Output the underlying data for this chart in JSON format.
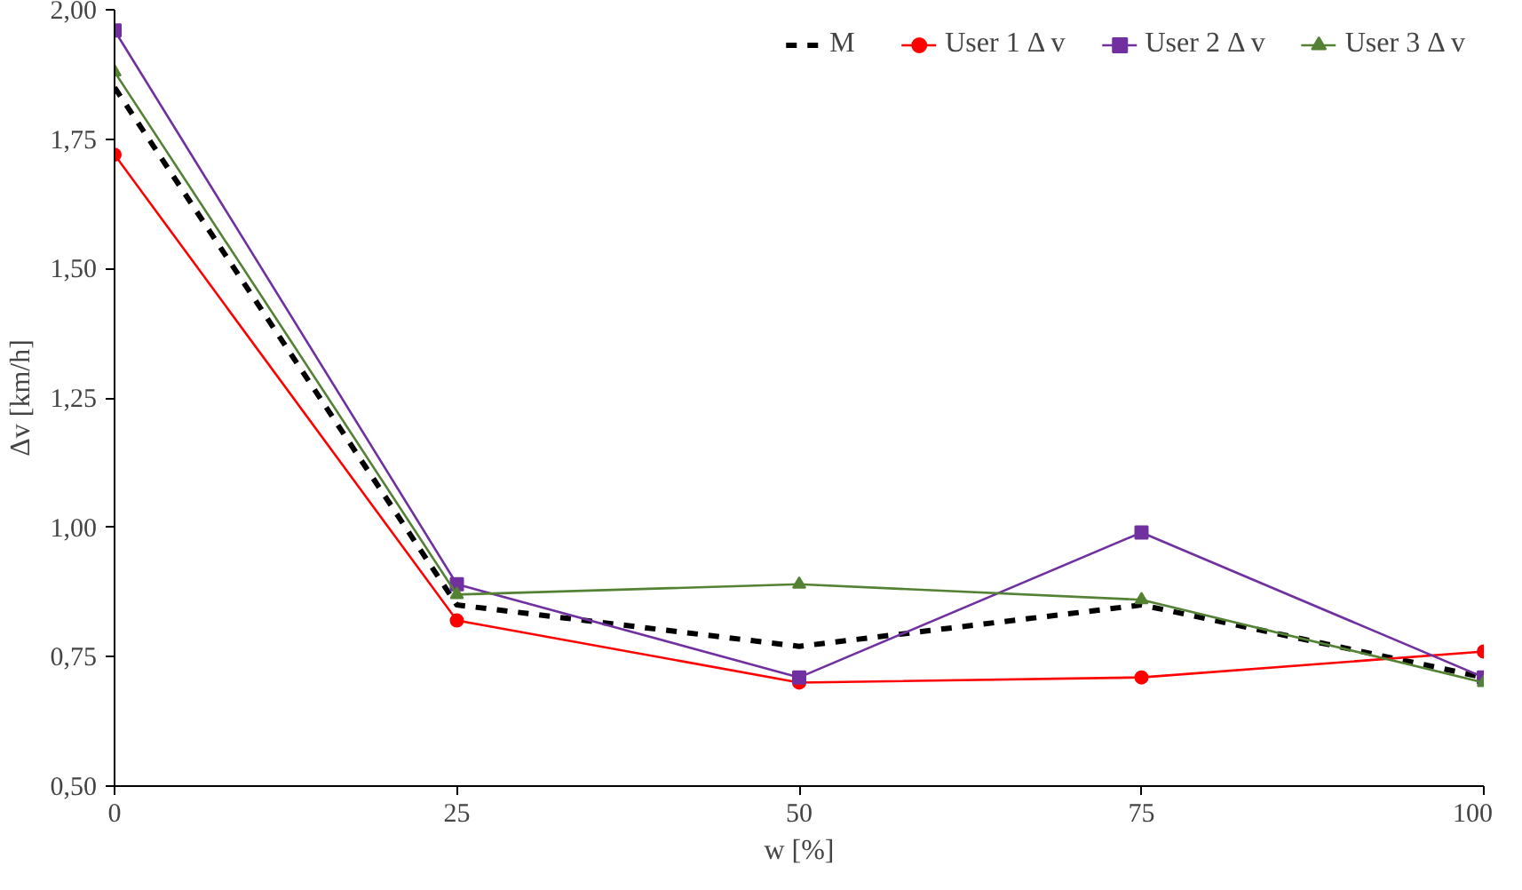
{
  "chart_data": {
    "type": "line",
    "xlabel": "w [%]",
    "ylabel": "Δv [km/h]",
    "x": [
      0,
      25,
      50,
      75,
      100
    ],
    "series": [
      {
        "name": "M",
        "color": "#000000",
        "values": [
          1.85,
          0.85,
          0.77,
          0.85,
          0.71
        ],
        "line_style": "dashed",
        "marker": "none"
      },
      {
        "name": "User 1 Δ v",
        "color": "#ff0000",
        "values": [
          1.72,
          0.82,
          0.7,
          0.71,
          0.76
        ],
        "marker": "circle"
      },
      {
        "name": "User 2 Δ v",
        "color": "#7030a0",
        "values": [
          1.96,
          0.89,
          0.71,
          0.99,
          0.71
        ],
        "marker": "square"
      },
      {
        "name": "User 3 Δ v",
        "color": "#548235",
        "values": [
          1.88,
          0.87,
          0.89,
          0.86,
          0.7
        ],
        "marker": "triangle"
      }
    ],
    "xlim": [
      0,
      100
    ],
    "xticks": [
      0,
      25,
      50,
      75,
      100
    ],
    "ylim": [
      0.5,
      2.0
    ],
    "yticks": [
      {
        "value": 0.5,
        "label": "0,50"
      },
      {
        "value": 0.75,
        "label": "0,75"
      },
      {
        "value": 1.0,
        "label": "1,00"
      },
      {
        "value": 1.25,
        "label": "1,25"
      },
      {
        "value": 1.5,
        "label": "1,50"
      },
      {
        "value": 1.75,
        "label": "1,75"
      },
      {
        "value": 2.0,
        "label": "2,00"
      }
    ],
    "grid": false,
    "legend": "top"
  }
}
